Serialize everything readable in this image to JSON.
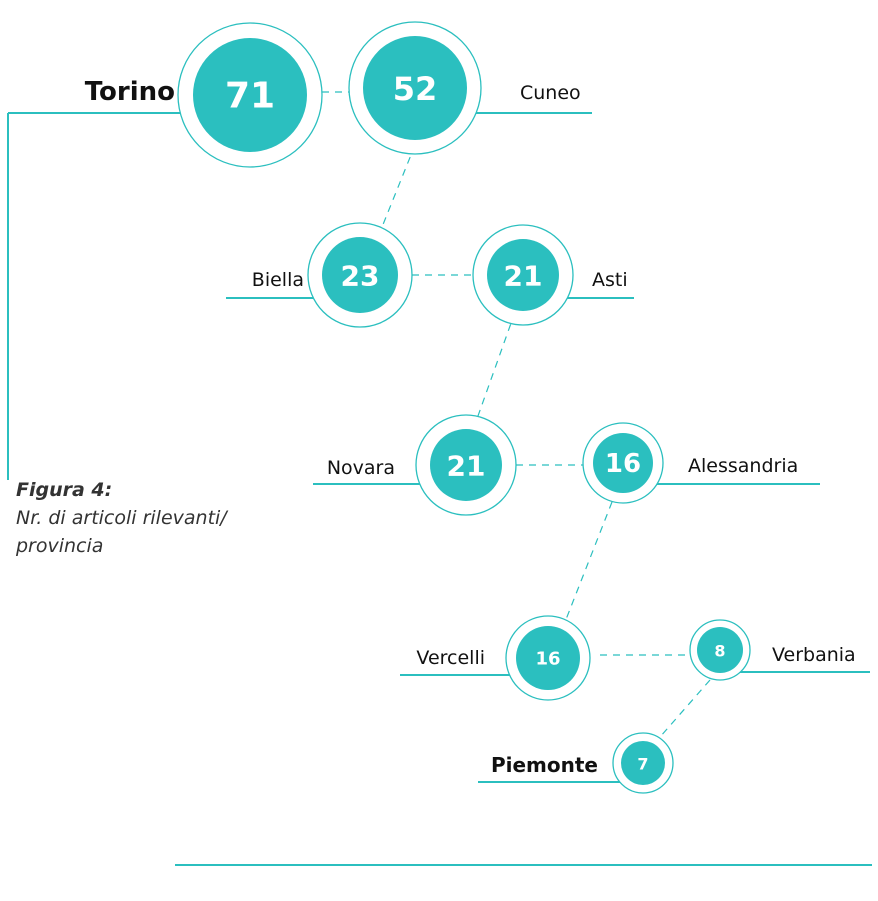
{
  "chart_data": {
    "type": "bubble",
    "title": "Figura 4:",
    "subtitle": "Nr. di articoli rilevanti/ provincia",
    "categories": [
      "Torino",
      "Cuneo",
      "Biella",
      "Asti",
      "Novara",
      "Alessandria",
      "Vercelli",
      "Verbania",
      "Piemonte"
    ],
    "values": [
      71,
      52,
      23,
      21,
      21,
      16,
      16,
      8,
      7
    ],
    "color": "#2bbfbf"
  }
}
